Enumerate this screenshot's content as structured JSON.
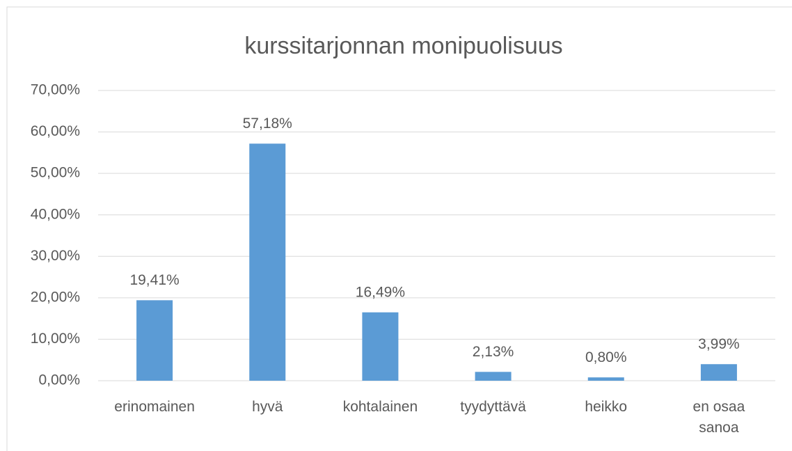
{
  "chart_data": {
    "type": "bar",
    "title": "kurssitarjonnan monipuolisuus",
    "categories": [
      "erinomainen",
      "hyvä",
      "kohtalainen",
      "tyydyttävä",
      "heikko",
      "en osaa sanoa"
    ],
    "values": [
      19.41,
      57.18,
      16.49,
      2.13,
      0.8,
      3.99
    ],
    "value_labels": [
      "19,41%",
      "57,18%",
      "16,49%",
      "2,13%",
      "0,80%",
      "3,99%"
    ],
    "color": "#5b9bd5",
    "ylim": [
      0,
      70
    ],
    "yticks": [
      {
        "value": 0,
        "label": "0,00%"
      },
      {
        "value": 10,
        "label": "10,00%"
      },
      {
        "value": 20,
        "label": "20,00%"
      },
      {
        "value": 30,
        "label": "30,00%"
      },
      {
        "value": 40,
        "label": "40,00%"
      },
      {
        "value": 50,
        "label": "50,00%"
      },
      {
        "value": 60,
        "label": "60,00%"
      },
      {
        "value": 70,
        "label": "70,00%"
      }
    ],
    "grid": true
  }
}
